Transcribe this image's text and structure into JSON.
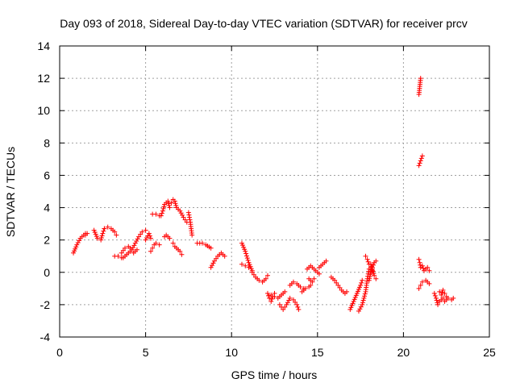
{
  "chart_data": {
    "type": "scatter",
    "title": "Day 093 of 2018, Sidereal Day-to-day VTEC variation (SDTVAR) for receiver prcv",
    "xlabel": "GPS time / hours",
    "ylabel": "SDTVAR / TECUs",
    "xlim": [
      0,
      25
    ],
    "ylim": [
      -4,
      14
    ],
    "xticks": [
      0,
      5,
      10,
      15,
      20,
      25
    ],
    "yticks": [
      -4,
      -2,
      0,
      2,
      4,
      6,
      8,
      10,
      12,
      14
    ],
    "grid": true,
    "marker": "+",
    "color": "#ff0000",
    "series": [
      {
        "name": "SDTVAR",
        "segments": [
          {
            "x0": 0.8,
            "x1": 1.5,
            "points": [
              [
                0.8,
                1.2
              ],
              [
                1.0,
                1.7
              ],
              [
                1.2,
                2.1
              ],
              [
                1.4,
                2.3
              ],
              [
                1.5,
                2.4
              ]
            ]
          },
          {
            "x0": 1.5,
            "x1": 1.5,
            "points": [
              [
                1.5,
                2.3
              ],
              [
                1.6,
                2.4
              ]
            ]
          },
          {
            "x0": 2.0,
            "x1": 2.6,
            "points": [
              [
                2.0,
                2.6
              ],
              [
                2.2,
                2.1
              ],
              [
                2.4,
                2.0
              ],
              [
                2.5,
                2.4
              ],
              [
                2.6,
                2.7
              ]
            ]
          },
          {
            "x0": 2.6,
            "x1": 3.3,
            "points": [
              [
                2.6,
                2.7
              ],
              [
                2.8,
                2.8
              ],
              [
                3.0,
                2.7
              ],
              [
                3.2,
                2.5
              ],
              [
                3.3,
                2.3
              ]
            ]
          },
          {
            "x0": 3.2,
            "x1": 3.6,
            "points": [
              [
                3.2,
                1.0
              ],
              [
                3.4,
                1.0
              ],
              [
                3.6,
                0.9
              ]
            ]
          },
          {
            "x0": 3.6,
            "x1": 5.0,
            "points": [
              [
                3.6,
                1.2
              ],
              [
                3.8,
                1.5
              ],
              [
                4.0,
                1.6
              ],
              [
                4.2,
                1.4
              ],
              [
                4.4,
                1.8
              ],
              [
                4.6,
                2.2
              ],
              [
                4.8,
                2.5
              ],
              [
                5.0,
                2.6
              ]
            ]
          },
          {
            "x0": 3.7,
            "x1": 4.5,
            "points": [
              [
                3.7,
                0.9
              ],
              [
                3.9,
                1.1
              ],
              [
                4.1,
                1.3
              ],
              [
                4.3,
                1.2
              ],
              [
                4.5,
                1.4
              ]
            ]
          },
          {
            "x0": 5.0,
            "x1": 5.3,
            "points": [
              [
                5.0,
                2.0
              ],
              [
                5.2,
                2.4
              ],
              [
                5.3,
                2.1
              ]
            ]
          },
          {
            "x0": 5.3,
            "x1": 5.8,
            "points": [
              [
                5.3,
                1.3
              ],
              [
                5.4,
                1.5
              ],
              [
                5.5,
                1.7
              ],
              [
                5.6,
                1.8
              ],
              [
                5.8,
                1.7
              ]
            ]
          },
          {
            "x0": 5.4,
            "x1": 5.8,
            "points": [
              [
                5.4,
                3.6
              ],
              [
                5.6,
                3.6
              ],
              [
                5.8,
                3.5
              ]
            ]
          },
          {
            "x0": 5.9,
            "x1": 6.4,
            "points": [
              [
                5.9,
                3.5
              ],
              [
                6.0,
                3.8
              ],
              [
                6.1,
                4.2
              ],
              [
                6.2,
                4.3
              ],
              [
                6.3,
                4.4
              ],
              [
                6.4,
                4.0
              ]
            ]
          },
          {
            "x0": 6.1,
            "x1": 6.4,
            "points": [
              [
                6.1,
                2.2
              ],
              [
                6.2,
                2.3
              ],
              [
                6.3,
                2.2
              ],
              [
                6.4,
                2.1
              ]
            ]
          },
          {
            "x0": 6.5,
            "x1": 7.4,
            "points": [
              [
                6.5,
                4.3
              ],
              [
                6.6,
                4.5
              ],
              [
                6.7,
                4.4
              ],
              [
                6.8,
                4.0
              ],
              [
                7.0,
                3.8
              ],
              [
                7.2,
                3.4
              ],
              [
                7.4,
                3.1
              ]
            ]
          },
          {
            "x0": 6.6,
            "x1": 6.9,
            "points": [
              [
                6.6,
                1.8
              ],
              [
                6.7,
                1.6
              ],
              [
                6.8,
                1.5
              ],
              [
                6.9,
                1.4
              ]
            ]
          },
          {
            "x0": 7.0,
            "x1": 7.1,
            "points": [
              [
                7.0,
                1.3
              ],
              [
                7.1,
                1.1
              ]
            ]
          },
          {
            "x0": 7.5,
            "x1": 7.7,
            "points": [
              [
                7.5,
                3.7
              ],
              [
                7.6,
                3.1
              ],
              [
                7.7,
                2.3
              ]
            ]
          },
          {
            "x0": 8.0,
            "x1": 8.8,
            "points": [
              [
                8.0,
                1.8
              ],
              [
                8.3,
                1.8
              ],
              [
                8.5,
                1.7
              ],
              [
                8.8,
                1.5
              ]
            ]
          },
          {
            "x0": 8.8,
            "x1": 9.6,
            "points": [
              [
                8.8,
                0.3
              ],
              [
                9.0,
                0.7
              ],
              [
                9.2,
                1.0
              ],
              [
                9.4,
                1.2
              ],
              [
                9.6,
                1.0
              ]
            ]
          },
          {
            "x0": 10.6,
            "x1": 11.2,
            "points": [
              [
                10.6,
                1.8
              ],
              [
                10.8,
                1.3
              ],
              [
                11.0,
                0.6
              ],
              [
                11.2,
                0.1
              ]
            ]
          },
          {
            "x0": 10.6,
            "x1": 11.0,
            "points": [
              [
                10.6,
                0.5
              ],
              [
                10.8,
                0.4
              ],
              [
                11.0,
                0.3
              ]
            ]
          },
          {
            "x0": 11.2,
            "x1": 12.1,
            "points": [
              [
                11.2,
                0.0
              ],
              [
                11.4,
                -0.3
              ],
              [
                11.6,
                -0.5
              ],
              [
                11.8,
                -0.6
              ],
              [
                12.0,
                -0.4
              ],
              [
                12.1,
                -0.2
              ]
            ]
          },
          {
            "x0": 12.1,
            "x1": 12.5,
            "points": [
              [
                12.1,
                -1.3
              ],
              [
                12.2,
                -1.6
              ],
              [
                12.3,
                -1.8
              ],
              [
                12.4,
                -1.5
              ],
              [
                12.5,
                -1.3
              ]
            ]
          },
          {
            "x0": 12.3,
            "x1": 13.1,
            "points": [
              [
                12.3,
                -1.4
              ],
              [
                12.5,
                -1.5
              ],
              [
                12.7,
                -1.6
              ],
              [
                12.9,
                -1.4
              ],
              [
                13.1,
                -1.2
              ]
            ]
          },
          {
            "x0": 12.8,
            "x1": 13.4,
            "points": [
              [
                12.8,
                -2.0
              ],
              [
                13.0,
                -2.3
              ],
              [
                13.2,
                -2.0
              ],
              [
                13.4,
                -1.6
              ]
            ]
          },
          {
            "x0": 13.4,
            "x1": 14.2,
            "points": [
              [
                13.4,
                -0.8
              ],
              [
                13.6,
                -0.6
              ],
              [
                13.8,
                -0.7
              ],
              [
                14.0,
                -0.9
              ],
              [
                14.2,
                -1.0
              ]
            ]
          },
          {
            "x0": 13.6,
            "x1": 13.9,
            "points": [
              [
                13.6,
                -1.7
              ],
              [
                13.8,
                -2.0
              ],
              [
                13.9,
                -2.3
              ]
            ]
          },
          {
            "x0": 14.1,
            "x1": 14.6,
            "points": [
              [
                14.1,
                -1.2
              ],
              [
                14.3,
                -1.0
              ],
              [
                14.5,
                -0.9
              ],
              [
                14.6,
                -0.8
              ]
            ]
          },
          {
            "x0": 14.4,
            "x1": 15.1,
            "points": [
              [
                14.4,
                0.2
              ],
              [
                14.6,
                0.4
              ],
              [
                14.8,
                0.2
              ],
              [
                15.0,
                0.0
              ],
              [
                15.1,
                -0.1
              ]
            ]
          },
          {
            "x0": 14.5,
            "x1": 14.8,
            "points": [
              [
                14.5,
                -0.4
              ],
              [
                14.7,
                -0.6
              ],
              [
                14.8,
                -0.4
              ]
            ]
          },
          {
            "x0": 15.1,
            "x1": 15.5,
            "points": [
              [
                15.1,
                0.3
              ],
              [
                15.3,
                0.5
              ],
              [
                15.5,
                0.7
              ]
            ]
          },
          {
            "x0": 15.8,
            "x1": 16.7,
            "points": [
              [
                15.8,
                -0.3
              ],
              [
                16.0,
                -0.5
              ],
              [
                16.2,
                -0.8
              ],
              [
                16.4,
                -1.1
              ],
              [
                16.6,
                -1.3
              ],
              [
                16.7,
                -1.2
              ]
            ]
          },
          {
            "x0": 16.9,
            "x1": 17.6,
            "points": [
              [
                16.9,
                -2.3
              ],
              [
                17.1,
                -1.8
              ],
              [
                17.3,
                -1.3
              ],
              [
                17.5,
                -0.8
              ],
              [
                17.6,
                -0.5
              ]
            ]
          },
          {
            "x0": 17.4,
            "x1": 18.0,
            "points": [
              [
                17.4,
                -2.4
              ],
              [
                17.6,
                -2.0
              ],
              [
                17.8,
                -1.2
              ],
              [
                17.9,
                -0.4
              ],
              [
                18.0,
                0.2
              ]
            ]
          },
          {
            "x0": 17.8,
            "x1": 18.2,
            "points": [
              [
                17.8,
                1.0
              ],
              [
                17.9,
                0.8
              ],
              [
                18.0,
                0.5
              ],
              [
                18.1,
                0.3
              ],
              [
                18.2,
                0.1
              ]
            ]
          },
          {
            "x0": 18.0,
            "x1": 18.4,
            "points": [
              [
                18.0,
                -0.5
              ],
              [
                18.1,
                0.0
              ],
              [
                18.2,
                0.3
              ],
              [
                18.3,
                0.6
              ],
              [
                18.4,
                0.7
              ]
            ]
          },
          {
            "x0": 18.1,
            "x1": 18.4,
            "points": [
              [
                18.1,
                0.5
              ],
              [
                18.2,
                0.2
              ],
              [
                18.3,
                -0.2
              ],
              [
                18.4,
                -0.4
              ]
            ]
          },
          {
            "x0": 20.9,
            "x1": 21.0,
            "points": [
              [
                20.9,
                11.0
              ],
              [
                20.95,
                11.5
              ],
              [
                21.0,
                12.0
              ]
            ]
          },
          {
            "x0": 20.9,
            "x1": 21.1,
            "points": [
              [
                20.9,
                6.6
              ],
              [
                21.0,
                6.9
              ],
              [
                21.1,
                7.2
              ]
            ]
          },
          {
            "x0": 20.9,
            "x1": 21.0,
            "points": [
              [
                20.9,
                0.8
              ],
              [
                20.95,
                0.6
              ],
              [
                21.0,
                0.3
              ]
            ]
          },
          {
            "x0": 20.9,
            "x1": 21.5,
            "points": [
              [
                20.9,
                -1.0
              ],
              [
                21.0,
                -0.8
              ],
              [
                21.1,
                -0.6
              ],
              [
                21.3,
                -0.5
              ],
              [
                21.5,
                -0.7
              ]
            ]
          },
          {
            "x0": 21.1,
            "x1": 21.5,
            "points": [
              [
                21.1,
                0.4
              ],
              [
                21.2,
                0.1
              ],
              [
                21.3,
                0.2
              ],
              [
                21.4,
                0.3
              ],
              [
                21.5,
                0.1
              ]
            ]
          },
          {
            "x0": 21.8,
            "x1": 22.3,
            "points": [
              [
                21.8,
                -1.3
              ],
              [
                21.9,
                -1.6
              ],
              [
                22.0,
                -2.0
              ],
              [
                22.1,
                -1.8
              ],
              [
                22.2,
                -1.7
              ],
              [
                22.3,
                -1.6
              ]
            ]
          },
          {
            "x0": 22.1,
            "x1": 22.5,
            "points": [
              [
                22.1,
                -1.2
              ],
              [
                22.2,
                -1.4
              ],
              [
                22.3,
                -1.1
              ],
              [
                22.4,
                -1.3
              ],
              [
                22.5,
                -1.5
              ]
            ]
          },
          {
            "x0": 22.4,
            "x1": 22.9,
            "points": [
              [
                22.4,
                -1.8
              ],
              [
                22.6,
                -1.6
              ],
              [
                22.8,
                -1.7
              ],
              [
                22.9,
                -1.6
              ]
            ]
          }
        ]
      }
    ]
  }
}
